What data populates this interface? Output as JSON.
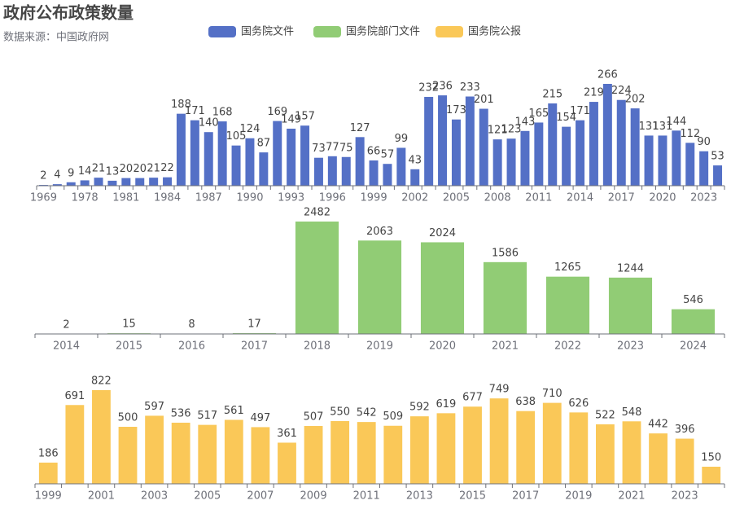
{
  "chart_data": [
    {
      "type": "bar",
      "title": "政府公布政策数量",
      "subtitle": "数据来源：中国政府网",
      "categories": [
        "1969",
        null,
        null,
        "1978",
        null,
        null,
        "1981",
        null,
        null,
        "1984",
        null,
        null,
        "1987",
        null,
        null,
        "1990",
        null,
        null,
        "1993",
        null,
        null,
        "1996",
        null,
        null,
        "1999",
        null,
        null,
        "2002",
        null,
        null,
        "2005",
        null,
        null,
        "2008",
        null,
        null,
        "2011",
        null,
        null,
        "2014",
        null,
        null,
        "2017",
        null,
        null,
        "2020",
        null,
        null,
        "2023",
        null
      ],
      "series": [
        {
          "name": "国务院文件",
          "color": "#5470c6",
          "values": [
            2,
            4,
            9,
            14,
            21,
            13,
            20,
            20,
            21,
            22,
            188,
            171,
            140,
            168,
            105,
            124,
            87,
            169,
            149,
            157,
            73,
            77,
            75,
            127,
            66,
            57,
            99,
            43,
            232,
            236,
            173,
            233,
            201,
            121,
            123,
            143,
            165,
            215,
            154,
            171,
            219,
            266,
            224,
            202,
            131,
            131,
            144,
            112,
            90,
            53
          ]
        }
      ],
      "ylim": [
        0,
        300
      ]
    },
    {
      "type": "bar",
      "categories": [
        "2014",
        "2015",
        "2016",
        "2017",
        "2018",
        "2019",
        "2020",
        "2021",
        "2022",
        "2023",
        "2024"
      ],
      "series": [
        {
          "name": "国务院部门文件",
          "color": "#91cc75",
          "values": [
            2,
            15,
            8,
            17,
            2482,
            2063,
            2024,
            1586,
            1265,
            1244,
            546
          ]
        }
      ],
      "ylim": [
        0,
        2500
      ]
    },
    {
      "type": "bar",
      "categories": [
        "1999",
        null,
        "2001",
        null,
        "2003",
        null,
        "2005",
        null,
        "2007",
        null,
        "2009",
        null,
        "2011",
        null,
        "2013",
        null,
        "2015",
        null,
        "2017",
        null,
        "2019",
        null,
        "2021",
        null,
        "2023",
        null
      ],
      "series": [
        {
          "name": "国务院公报",
          "color": "#fac858",
          "values": [
            186,
            691,
            822,
            500,
            597,
            536,
            517,
            561,
            497,
            361,
            507,
            550,
            542,
            509,
            592,
            619,
            677,
            749,
            638,
            710,
            626,
            522,
            548,
            442,
            396,
            150
          ]
        }
      ],
      "ylim": [
        0,
        900
      ]
    }
  ]
}
